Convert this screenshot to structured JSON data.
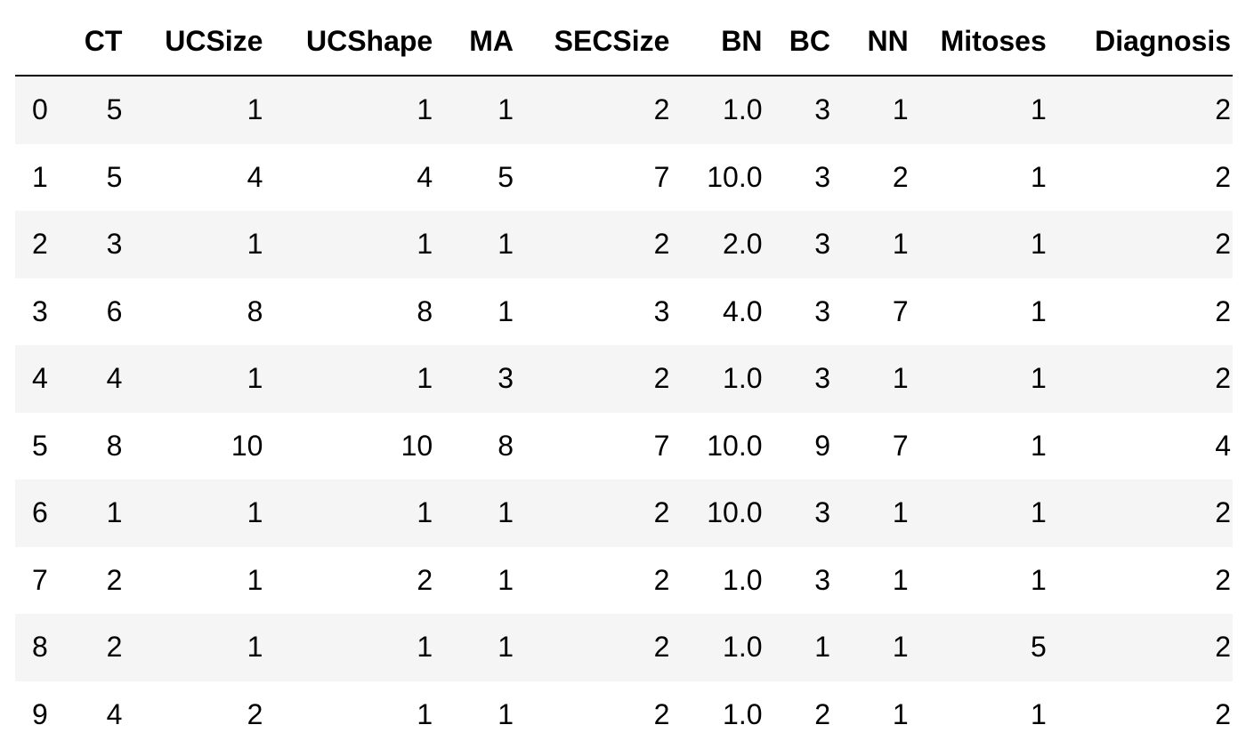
{
  "table": {
    "columns": [
      "",
      "CT",
      "UCSize",
      "UCShape",
      "MA",
      "SECSize",
      "BN",
      "BC",
      "NN",
      "Mitoses",
      "Diagnosis"
    ],
    "rows": [
      [
        "0",
        "5",
        "1",
        "1",
        "1",
        "2",
        "1.0",
        "3",
        "1",
        "1",
        "2"
      ],
      [
        "1",
        "5",
        "4",
        "4",
        "5",
        "7",
        "10.0",
        "3",
        "2",
        "1",
        "2"
      ],
      [
        "2",
        "3",
        "1",
        "1",
        "1",
        "2",
        "2.0",
        "3",
        "1",
        "1",
        "2"
      ],
      [
        "3",
        "6",
        "8",
        "8",
        "1",
        "3",
        "4.0",
        "3",
        "7",
        "1",
        "2"
      ],
      [
        "4",
        "4",
        "1",
        "1",
        "3",
        "2",
        "1.0",
        "3",
        "1",
        "1",
        "2"
      ],
      [
        "5",
        "8",
        "10",
        "10",
        "8",
        "7",
        "10.0",
        "9",
        "7",
        "1",
        "4"
      ],
      [
        "6",
        "1",
        "1",
        "1",
        "1",
        "2",
        "10.0",
        "3",
        "1",
        "1",
        "2"
      ],
      [
        "7",
        "2",
        "1",
        "2",
        "1",
        "2",
        "1.0",
        "3",
        "1",
        "1",
        "2"
      ],
      [
        "8",
        "2",
        "1",
        "1",
        "1",
        "2",
        "1.0",
        "1",
        "1",
        "5",
        "2"
      ],
      [
        "9",
        "4",
        "2",
        "1",
        "1",
        "2",
        "1.0",
        "2",
        "1",
        "1",
        "2"
      ]
    ]
  },
  "colors": {
    "stripe": "#f5f5f5",
    "background": "#ffffff",
    "text": "#000000"
  }
}
